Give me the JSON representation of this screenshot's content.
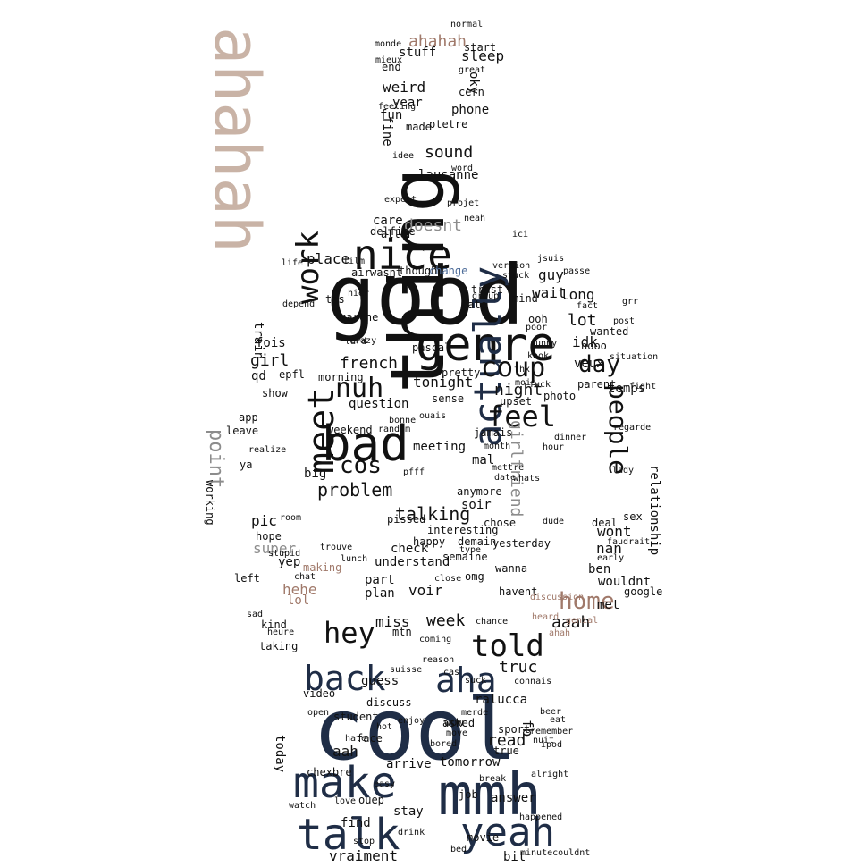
{
  "palette": {
    "dark": "#111111",
    "navy": "#1f2d46",
    "mauve": "#a0796a",
    "tan": "#c9b3a6",
    "grey": "#8c8c8c",
    "blue": "#4e6d9a"
  },
  "silhouette": "standing-person-hands-on-hips",
  "words": [
    {
      "t": "good",
      "c": "dark"
    },
    {
      "t": "cool",
      "c": "navy"
    },
    {
      "t": "ahahah",
      "c": "tan"
    },
    {
      "t": "thing",
      "c": "dark"
    },
    {
      "t": "mmh",
      "c": "navy"
    },
    {
      "t": "genre",
      "c": "dark"
    },
    {
      "t": "nice",
      "c": "dark"
    },
    {
      "t": "bad",
      "c": "dark"
    },
    {
      "t": "make",
      "c": "navy"
    },
    {
      "t": "talk",
      "c": "navy"
    },
    {
      "t": "yeah",
      "c": "navy"
    },
    {
      "t": "actually",
      "c": "navy"
    },
    {
      "t": "meet",
      "c": "dark"
    },
    {
      "t": "back",
      "c": "navy"
    },
    {
      "t": "aha",
      "c": "navy"
    },
    {
      "t": "hey",
      "c": "dark"
    },
    {
      "t": "told",
      "c": "dark"
    },
    {
      "t": "work",
      "c": "dark"
    },
    {
      "t": "nuh",
      "c": "dark"
    },
    {
      "t": "feel",
      "c": "dark"
    },
    {
      "t": "coup",
      "c": "dark"
    },
    {
      "t": "day",
      "c": "dark"
    },
    {
      "t": "home",
      "c": "mauve"
    },
    {
      "t": "people",
      "c": "dark"
    },
    {
      "t": "point",
      "c": "grey"
    },
    {
      "t": "cos",
      "c": "dark"
    },
    {
      "t": "problem",
      "c": "dark"
    },
    {
      "t": "talking",
      "c": "dark"
    },
    {
      "t": "girlfriend",
      "c": "grey"
    },
    {
      "t": "french",
      "c": "dark"
    },
    {
      "t": "tonight",
      "c": "dark"
    },
    {
      "t": "question",
      "c": "dark"
    },
    {
      "t": "place",
      "c": "dark"
    },
    {
      "t": "guy",
      "c": "dark"
    },
    {
      "t": "wait",
      "c": "dark"
    },
    {
      "t": "long",
      "c": "dark"
    },
    {
      "t": "lot",
      "c": "dark"
    },
    {
      "t": "idk",
      "c": "dark"
    },
    {
      "t": "veux",
      "c": "dark"
    },
    {
      "t": "temps",
      "c": "dark"
    },
    {
      "t": "night",
      "c": "dark"
    },
    {
      "t": "girl",
      "c": "dark"
    },
    {
      "t": "fois",
      "c": "dark"
    },
    {
      "t": "train",
      "c": "dark"
    },
    {
      "t": "qd",
      "c": "dark"
    },
    {
      "t": "epfl",
      "c": "dark"
    },
    {
      "t": "sound",
      "c": "dark"
    },
    {
      "t": "lausanne",
      "c": "dark"
    },
    {
      "t": "sleep",
      "c": "dark"
    },
    {
      "t": "ahahah",
      "c": "mauve"
    },
    {
      "t": "weird",
      "c": "dark"
    },
    {
      "t": "year",
      "c": "dark"
    },
    {
      "t": "phone",
      "c": "dark"
    },
    {
      "t": "stuff",
      "c": "dark"
    },
    {
      "t": "fun",
      "c": "dark"
    },
    {
      "t": "fine",
      "c": "dark"
    },
    {
      "t": "made",
      "c": "dark"
    },
    {
      "t": "oky",
      "c": "dark"
    },
    {
      "t": "end",
      "c": "dark"
    },
    {
      "t": "cern",
      "c": "dark"
    },
    {
      "t": "care",
      "c": "dark"
    },
    {
      "t": "aller",
      "c": "dark"
    },
    {
      "t": "doesnt",
      "c": "grey"
    },
    {
      "t": "delfine",
      "c": "dark"
    },
    {
      "t": "air",
      "c": "dark"
    },
    {
      "t": "wasnt",
      "c": "dark"
    },
    {
      "t": "thought",
      "c": "dark"
    },
    {
      "t": "change",
      "c": "blue"
    },
    {
      "t": "nope",
      "c": "dark"
    },
    {
      "t": "pascal",
      "c": "dark"
    },
    {
      "t": "part",
      "c": "dark"
    },
    {
      "t": "voir",
      "c": "dark"
    },
    {
      "t": "plan",
      "c": "dark"
    },
    {
      "t": "check",
      "c": "dark"
    },
    {
      "t": "understand",
      "c": "dark"
    },
    {
      "t": "week",
      "c": "dark"
    },
    {
      "t": "miss",
      "c": "dark"
    },
    {
      "t": "aaah",
      "c": "dark"
    },
    {
      "t": "truc",
      "c": "dark"
    },
    {
      "t": "wont",
      "c": "dark"
    },
    {
      "t": "nan",
      "c": "dark"
    },
    {
      "t": "ben",
      "c": "dark"
    },
    {
      "t": "fb",
      "c": "dark"
    },
    {
      "t": "read",
      "c": "dark"
    },
    {
      "t": "aah",
      "c": "dark"
    },
    {
      "t": "today",
      "c": "dark"
    },
    {
      "t": "video",
      "c": "dark"
    },
    {
      "t": "guess",
      "c": "dark"
    },
    {
      "t": "arrive",
      "c": "dark"
    },
    {
      "t": "tomorrow",
      "c": "dark"
    },
    {
      "t": "chexbre",
      "c": "dark"
    },
    {
      "t": "find",
      "c": "dark"
    },
    {
      "t": "stay",
      "c": "dark"
    },
    {
      "t": "answer",
      "c": "dark"
    },
    {
      "t": "bit",
      "c": "dark"
    },
    {
      "t": "vraiment",
      "c": "dark"
    },
    {
      "t": "ouep",
      "c": "dark"
    },
    {
      "t": "super",
      "c": "grey"
    },
    {
      "t": "hehe",
      "c": "mauve"
    },
    {
      "t": "lol",
      "c": "mauve"
    },
    {
      "t": "pic",
      "c": "dark"
    },
    {
      "t": "hope",
      "c": "dark"
    },
    {
      "t": "yep",
      "c": "dark"
    },
    {
      "t": "left",
      "c": "dark"
    },
    {
      "t": "app",
      "c": "dark"
    },
    {
      "t": "leave",
      "c": "dark"
    },
    {
      "t": "ya",
      "c": "dark"
    },
    {
      "t": "meeting",
      "c": "dark"
    },
    {
      "t": "weekend",
      "c": "dark"
    },
    {
      "t": "soir",
      "c": "dark"
    },
    {
      "t": "mal",
      "c": "dark"
    },
    {
      "t": "jamais",
      "c": "dark"
    },
    {
      "t": "anymore",
      "c": "dark"
    },
    {
      "t": "happy",
      "c": "dark"
    },
    {
      "t": "demain",
      "c": "dark"
    },
    {
      "t": "yesterday",
      "c": "dark"
    },
    {
      "t": "wanna",
      "c": "dark"
    },
    {
      "t": "omg",
      "c": "dark"
    },
    {
      "t": "semaine",
      "c": "dark"
    },
    {
      "t": "havent",
      "c": "dark"
    },
    {
      "t": "relationship",
      "c": "dark"
    },
    {
      "t": "sex",
      "c": "dark"
    },
    {
      "t": "sport",
      "c": "dark"
    },
    {
      "t": "ralucca",
      "c": "dark"
    },
    {
      "t": "true",
      "c": "dark"
    },
    {
      "t": "asked",
      "c": "dark"
    },
    {
      "t": "discuss",
      "c": "dark"
    },
    {
      "t": "suisse",
      "c": "dark"
    },
    {
      "t": "morning",
      "c": "dark"
    },
    {
      "t": "sense",
      "c": "dark"
    },
    {
      "t": "pretty",
      "c": "dark"
    },
    {
      "t": "photo",
      "c": "dark"
    },
    {
      "t": "parent",
      "c": "dark"
    },
    {
      "t": "upset",
      "c": "dark"
    },
    {
      "t": "big",
      "c": "dark"
    },
    {
      "t": "pissed",
      "c": "dark"
    },
    {
      "t": "nooo",
      "c": "dark"
    },
    {
      "t": "ooh",
      "c": "dark"
    },
    {
      "t": "wanted",
      "c": "dark"
    },
    {
      "t": "late",
      "c": "dark"
    },
    {
      "t": "mind",
      "c": "dark"
    },
    {
      "t": "trust",
      "c": "dark"
    },
    {
      "t": "stuck",
      "c": "dark"
    },
    {
      "t": "crazy",
      "c": "dark"
    },
    {
      "t": "marche",
      "c": "dark"
    },
    {
      "t": "hier",
      "c": "dark"
    },
    {
      "t": "tjs",
      "c": "dark"
    },
    {
      "t": "date",
      "c": "dark"
    },
    {
      "t": "chose",
      "c": "dark"
    },
    {
      "t": "interesting",
      "c": "dark"
    },
    {
      "t": "month",
      "c": "dark"
    },
    {
      "t": "wouldnt",
      "c": "dark"
    },
    {
      "t": "met",
      "c": "dark"
    },
    {
      "t": "google",
      "c": "dark"
    },
    {
      "t": "chance",
      "c": "dark"
    },
    {
      "t": "mtn",
      "c": "dark"
    },
    {
      "t": "cas",
      "c": "dark"
    },
    {
      "t": "job",
      "c": "dark"
    },
    {
      "t": "bed",
      "c": "dark"
    },
    {
      "t": "movie",
      "c": "dark"
    },
    {
      "t": "happened",
      "c": "dark"
    },
    {
      "t": "easy",
      "c": "dark"
    },
    {
      "t": "watch",
      "c": "dark"
    },
    {
      "t": "love",
      "c": "dark"
    },
    {
      "t": "face",
      "c": "dark"
    },
    {
      "t": "enjoy",
      "c": "dark"
    },
    {
      "t": "student",
      "c": "dark"
    },
    {
      "t": "wow",
      "c": "dark"
    },
    {
      "t": "move",
      "c": "dark"
    },
    {
      "t": "merde",
      "c": "dark"
    },
    {
      "t": "beer",
      "c": "dark"
    },
    {
      "t": "eat",
      "c": "dark"
    },
    {
      "t": "making",
      "c": "mauve"
    },
    {
      "t": "heure",
      "c": "dark"
    },
    {
      "t": "taking",
      "c": "dark"
    },
    {
      "t": "kind",
      "c": "dark"
    },
    {
      "t": "working",
      "c": "dark"
    },
    {
      "t": "show",
      "c": "dark"
    },
    {
      "t": "realize",
      "c": "dark"
    },
    {
      "t": "start",
      "c": "dark"
    },
    {
      "t": "mieux",
      "c": "dark"
    },
    {
      "t": "monde",
      "c": "dark"
    },
    {
      "t": "normal",
      "c": "dark"
    },
    {
      "t": "feeling",
      "c": "dark"
    },
    {
      "t": "ptetre",
      "c": "dark"
    },
    {
      "t": "great",
      "c": "dark"
    },
    {
      "t": "idee",
      "c": "dark"
    },
    {
      "t": "word",
      "c": "dark"
    },
    {
      "t": "projet",
      "c": "dark"
    },
    {
      "t": "expect",
      "c": "dark"
    },
    {
      "t": "neah",
      "c": "dark"
    },
    {
      "t": "film",
      "c": "dark"
    },
    {
      "t": "life",
      "c": "dark"
    },
    {
      "t": "depend",
      "c": "dark"
    },
    {
      "t": "version",
      "c": "dark"
    },
    {
      "t": "grr",
      "c": "dark"
    },
    {
      "t": "post",
      "c": "dark"
    },
    {
      "t": "fact",
      "c": "dark"
    },
    {
      "t": "passe",
      "c": "dark"
    },
    {
      "t": "group",
      "c": "dark"
    },
    {
      "t": "poor",
      "c": "dark"
    },
    {
      "t": "funny",
      "c": "dark"
    },
    {
      "t": "kook",
      "c": "dark"
    },
    {
      "t": "thx",
      "c": "dark"
    },
    {
      "t": "pfff",
      "c": "dark"
    },
    {
      "t": "lunch",
      "c": "dark"
    },
    {
      "t": "chat",
      "c": "dark"
    },
    {
      "t": "trouve",
      "c": "dark"
    },
    {
      "t": "hour",
      "c": "dark"
    },
    {
      "t": "dinner",
      "c": "dark"
    },
    {
      "t": "deal",
      "c": "dark"
    },
    {
      "t": "lady",
      "c": "dark"
    },
    {
      "t": "fight",
      "c": "dark"
    },
    {
      "t": "situation",
      "c": "dark"
    },
    {
      "t": "regarde",
      "c": "dark"
    },
    {
      "t": "faudrait",
      "c": "dark"
    },
    {
      "t": "mettre",
      "c": "dark"
    },
    {
      "t": "whats",
      "c": "dark"
    },
    {
      "t": "coming",
      "c": "dark"
    },
    {
      "t": "reason",
      "c": "dark"
    },
    {
      "t": "connais",
      "c": "dark"
    },
    {
      "t": "remember",
      "c": "dark"
    },
    {
      "t": "minutecouldnt",
      "c": "dark"
    },
    {
      "t": "alright",
      "c": "dark"
    },
    {
      "t": "break",
      "c": "dark"
    },
    {
      "t": "stop",
      "c": "dark"
    },
    {
      "t": "drink",
      "c": "dark"
    },
    {
      "t": "hot",
      "c": "dark"
    },
    {
      "t": "hate",
      "c": "dark"
    },
    {
      "t": "bored",
      "c": "dark"
    },
    {
      "t": "type",
      "c": "dark"
    },
    {
      "t": "close",
      "c": "dark"
    },
    {
      "t": "fuck",
      "c": "dark"
    },
    {
      "t": "early",
      "c": "dark"
    },
    {
      "t": "ahah",
      "c": "mauve"
    },
    {
      "t": "dude",
      "c": "dark"
    },
    {
      "t": "random",
      "c": "dark"
    },
    {
      "t": "ouais",
      "c": "dark"
    },
    {
      "t": "mois",
      "c": "dark"
    },
    {
      "t": "bonne",
      "c": "dark"
    },
    {
      "t": "tard",
      "c": "dark"
    },
    {
      "t": "discussion",
      "c": "mauve"
    },
    {
      "t": "heard",
      "c": "mauve"
    },
    {
      "t": "genial",
      "c": "mauve"
    },
    {
      "t": "suck",
      "c": "dark"
    },
    {
      "t": "open",
      "c": "dark"
    },
    {
      "t": "sad",
      "c": "dark"
    },
    {
      "t": "room",
      "c": "dark"
    },
    {
      "t": "stupid",
      "c": "dark"
    },
    {
      "t": "nuit",
      "c": "dark"
    },
    {
      "t": "ipod",
      "c": "dark"
    },
    {
      "t": "ici",
      "c": "dark"
    },
    {
      "t": "jsuis",
      "c": "dark"
    }
  ]
}
